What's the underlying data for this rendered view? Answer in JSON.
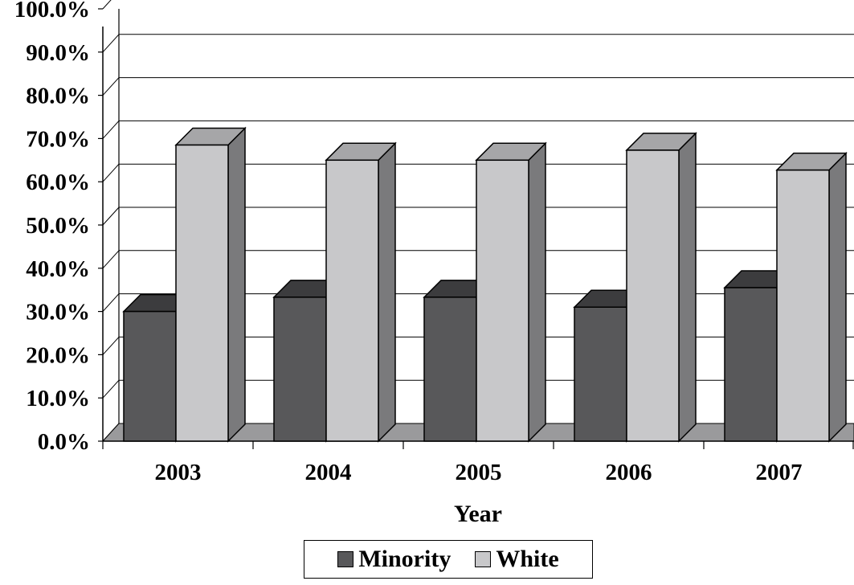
{
  "chart_data": {
    "type": "bar",
    "categories": [
      "2003",
      "2004",
      "2005",
      "2006",
      "2007"
    ],
    "series": [
      {
        "name": "Minority",
        "values": [
          30.0,
          33.3,
          33.3,
          31.0,
          35.5
        ],
        "color": "#58585a"
      },
      {
        "name": "White",
        "values": [
          68.5,
          65.0,
          65.0,
          67.3,
          62.7
        ],
        "color": "#c8c8ca"
      }
    ],
    "title": "",
    "xlabel": "Year",
    "ylabel": "",
    "ylim": [
      0,
      100
    ],
    "yticks": [
      "0.0%",
      "10.0%",
      "20.0%",
      "30.0%",
      "40.0%",
      "50.0%",
      "60.0%",
      "70.0%",
      "80.0%",
      "90.0%",
      "100.0%"
    ],
    "grid": true,
    "legend": "bottom-center",
    "style": "3d-clustered-column",
    "colors": {
      "minority_top": "#3c3c3e",
      "white_top": "#a6a6a8",
      "white_side": "#7a7a7c",
      "floor": "#9a9a9c"
    }
  }
}
